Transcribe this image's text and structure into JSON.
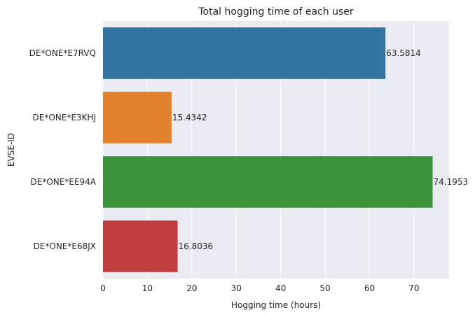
{
  "chart_data": {
    "type": "bar",
    "orientation": "horizontal",
    "title": "Total hogging time of each user",
    "xlabel": "Hogging time (hours)",
    "ylabel": "EVSE-ID",
    "categories": [
      "DE*ONE*E7RVQ",
      "DE*ONE*E3KHJ",
      "DE*ONE*EE94A",
      "DE*ONE*E68JX"
    ],
    "values": [
      63.5814,
      15.4342,
      74.1953,
      16.8036
    ],
    "data_labels": [
      "63.5814",
      "15.4342",
      "74.1953",
      "16.8036"
    ],
    "colors": [
      "#3274a1",
      "#e1812c",
      "#3a923a",
      "#c03d3e"
    ],
    "xlim": [
      0,
      77.9
    ],
    "xticks": [
      0,
      10,
      20,
      30,
      40,
      50,
      60,
      70
    ],
    "grid": true,
    "background": "#eaeaf2",
    "grid_color": "#ffffff"
  }
}
